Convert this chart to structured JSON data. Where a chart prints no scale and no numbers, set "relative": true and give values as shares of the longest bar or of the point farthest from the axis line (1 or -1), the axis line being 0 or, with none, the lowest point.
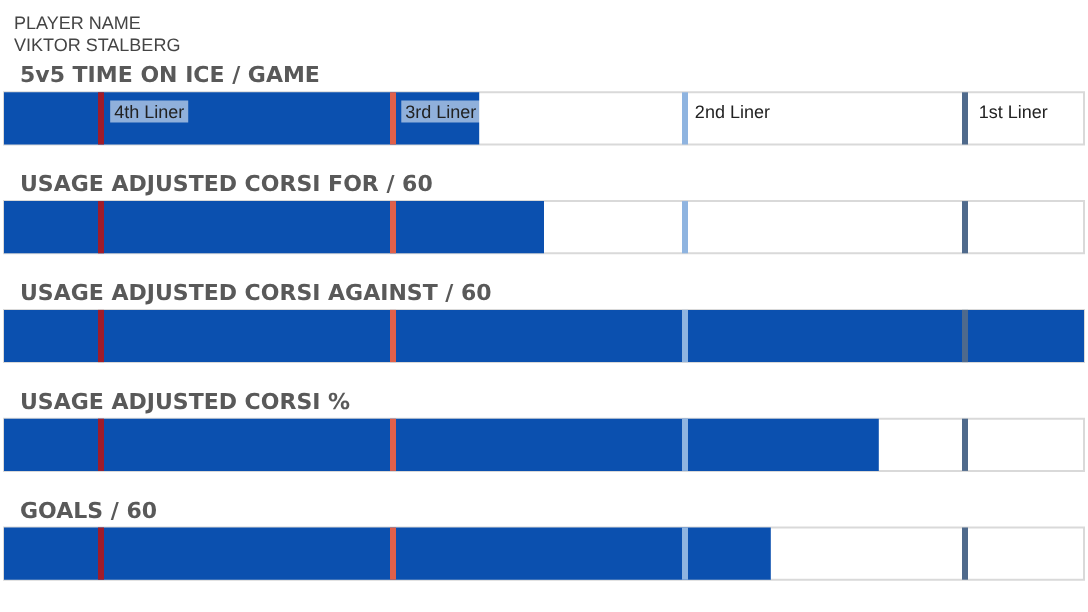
{
  "chart_data": {
    "type": "bar",
    "orientation": "horizontal",
    "relative": true,
    "title": "PLAYER NAME",
    "subtitle": "VIKTOR STALBERG",
    "categories": [
      "5v5 TIME ON ICE / GAME",
      "USAGE ADJUSTED CORSI FOR / 60",
      "USAGE ADJUSTED CORSI AGAINST / 60",
      "USAGE ADJUSTED CORSI %",
      "GOALS / 60"
    ],
    "values": [
      0.44,
      0.5,
      1,
      0.81,
      0.71
    ],
    "color": "#0b50af",
    "ref_lines": [
      {
        "axis": "x",
        "value": 0.09,
        "label": "4th Liner",
        "color": "#a01c2a"
      },
      {
        "axis": "x",
        "value": 0.36,
        "label": "3rd Liner",
        "color": "#e0604a"
      },
      {
        "axis": "x",
        "value": 0.63,
        "label": "2nd Liner",
        "color": "#8fb4e0"
      },
      {
        "axis": "x",
        "value": 0.89,
        "label": "1st Liner",
        "color": "#4f6a8c"
      }
    ]
  }
}
